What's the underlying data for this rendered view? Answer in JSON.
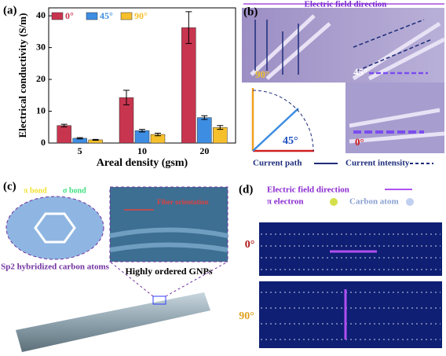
{
  "chart_data": {
    "type": "bar",
    "panel_label": "(a)",
    "ylabel": "Electrical conductivity (S/m)",
    "xlabel": "Areal density (gsm)",
    "categories": [
      "5",
      "10",
      "20"
    ],
    "series": [
      {
        "name": "0°",
        "color": "#c8354f",
        "values": [
          5.5,
          14.3,
          36.3
        ],
        "errors": [
          0.4,
          2.3,
          5.0
        ]
      },
      {
        "name": "45°",
        "color": "#3d8de2",
        "values": [
          1.5,
          3.9,
          8.0
        ],
        "errors": [
          0.2,
          0.4,
          0.6
        ]
      },
      {
        "name": "90°",
        "color": "#f6c02c",
        "values": [
          1.0,
          2.7,
          4.9
        ],
        "errors": [
          0.15,
          0.4,
          0.6
        ]
      }
    ],
    "ylim": [
      0,
      42.5
    ],
    "yticks": [
      0,
      10,
      20,
      30,
      40
    ],
    "legend": "upper left"
  },
  "panel_b": {
    "label": "(b)",
    "field_direction": "Electric field direction",
    "angle_90": "90°",
    "angle_45": "45°",
    "angle_0": "0°",
    "quadrant_angle": "45°",
    "current_path": "Current path",
    "current_intensity": "Current intensity"
  },
  "panel_c": {
    "label": "(c)",
    "pi_bond": "π bond",
    "sigma_bond": "σ bond",
    "sp2": "Sp2 hybridized carbon atoms",
    "fiber_orientation": "Fiber orientation",
    "gnps": "Highly ordered GNPs"
  },
  "panel_d": {
    "label": "(d)",
    "field_direction": "Electric field direction",
    "pi_electron": "π electron",
    "carbon_atom": "Carbon atom",
    "angle_0": "0°",
    "angle_90": "90°"
  }
}
